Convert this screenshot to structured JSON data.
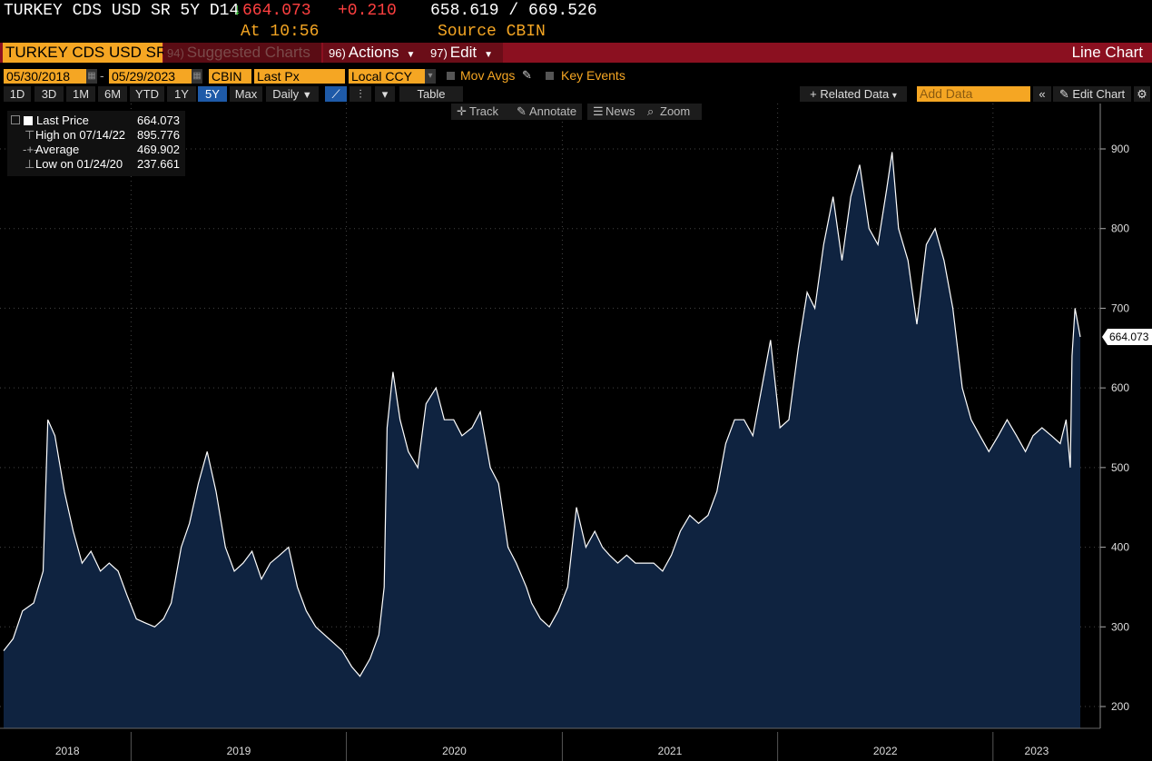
{
  "header": {
    "ticker": "TURKEY CDS USD SR 5Y D14",
    "direction_arrow": "↓",
    "last": "664.073",
    "change": "+0.210",
    "range": "658.619 / 669.526",
    "time_label": "At 10:56",
    "source_label": "Source CBIN"
  },
  "toolbar": {
    "security_name": "TURKEY CDS USD SR",
    "suggested_num": "94)",
    "suggested_label": "Suggested Charts",
    "actions_num": "96)",
    "actions_label": "Actions",
    "edit_num": "97)",
    "edit_label": "Edit",
    "chart_type": "Line Chart"
  },
  "settings": {
    "start_date": "05/30/2018",
    "end_date": "05/29/2023",
    "source": "CBIN",
    "field": "Last Px",
    "currency": "Local CCY",
    "mov_avgs": "Mov Avgs",
    "key_events": "Key Events"
  },
  "periods": [
    "1D",
    "3D",
    "1M",
    "6M",
    "YTD",
    "1Y",
    "5Y",
    "Max"
  ],
  "selected_period": "5Y",
  "frequency": "Daily",
  "table_label": "Table",
  "related_data": "Related Data",
  "add_data_placeholder": "Add Data",
  "edit_chart": "Edit Chart",
  "tools": [
    "Track",
    "Annotate",
    "News",
    "Zoom"
  ],
  "legend": {
    "last_label": "Last Price",
    "last_value": "664.073",
    "high_label": "High on 07/14/22",
    "high_value": "895.776",
    "avg_label": "Average",
    "avg_value": "469.902",
    "low_label": "Low on 01/24/20",
    "low_value": "237.661"
  },
  "chart_data": {
    "type": "area",
    "title": "",
    "xlabel": "",
    "ylabel": "",
    "ylim": [
      175,
      950
    ],
    "yticks": [
      200,
      300,
      400,
      500,
      600,
      700,
      800,
      900
    ],
    "x_tick_labels": [
      "2018",
      "2019",
      "2020",
      "2021",
      "2022",
      "2023"
    ],
    "last_value_label": "664.073",
    "fill_color": "#0f2340",
    "line_color": "#ffffff",
    "grid": true,
    "x": [
      "2018-05-30",
      "2018-06-15",
      "2018-07-01",
      "2018-07-20",
      "2018-08-05",
      "2018-08-13",
      "2018-08-25",
      "2018-09-10",
      "2018-09-25",
      "2018-10-10",
      "2018-10-25",
      "2018-11-10",
      "2018-11-25",
      "2018-12-10",
      "2018-12-25",
      "2019-01-10",
      "2019-01-25",
      "2019-02-10",
      "2019-02-25",
      "2019-03-10",
      "2019-03-27",
      "2019-04-10",
      "2019-04-25",
      "2019-05-10",
      "2019-05-25",
      "2019-06-10",
      "2019-06-25",
      "2019-07-10",
      "2019-07-25",
      "2019-08-10",
      "2019-08-25",
      "2019-09-10",
      "2019-09-25",
      "2019-10-10",
      "2019-10-25",
      "2019-11-10",
      "2019-11-25",
      "2019-12-10",
      "2019-12-25",
      "2020-01-10",
      "2020-01-24",
      "2020-02-10",
      "2020-02-25",
      "2020-03-05",
      "2020-03-10",
      "2020-03-20",
      "2020-04-01",
      "2020-04-15",
      "2020-05-01",
      "2020-05-15",
      "2020-06-01",
      "2020-06-15",
      "2020-07-01",
      "2020-07-15",
      "2020-08-01",
      "2020-08-15",
      "2020-09-01",
      "2020-09-15",
      "2020-10-01",
      "2020-10-15",
      "2020-11-01",
      "2020-11-10",
      "2020-11-25",
      "2020-12-10",
      "2020-12-25",
      "2021-01-10",
      "2021-01-25",
      "2021-02-10",
      "2021-02-25",
      "2021-03-10",
      "2021-03-22",
      "2021-04-05",
      "2021-04-20",
      "2021-05-05",
      "2021-05-20",
      "2021-06-05",
      "2021-06-20",
      "2021-07-05",
      "2021-07-20",
      "2021-08-05",
      "2021-08-20",
      "2021-09-05",
      "2021-09-20",
      "2021-10-05",
      "2021-10-20",
      "2021-11-05",
      "2021-11-20",
      "2021-12-05",
      "2021-12-20",
      "2022-01-05",
      "2022-01-20",
      "2022-02-05",
      "2022-02-20",
      "2022-03-05",
      "2022-03-20",
      "2022-04-05",
      "2022-04-20",
      "2022-05-05",
      "2022-05-20",
      "2022-06-05",
      "2022-06-20",
      "2022-07-05",
      "2022-07-14",
      "2022-07-25",
      "2022-08-10",
      "2022-08-25",
      "2022-09-10",
      "2022-09-25",
      "2022-10-10",
      "2022-10-25",
      "2022-11-10",
      "2022-11-25",
      "2022-12-10",
      "2022-12-25",
      "2023-01-10",
      "2023-01-25",
      "2023-02-10",
      "2023-02-25",
      "2023-03-10",
      "2023-03-25",
      "2023-04-10",
      "2023-04-25",
      "2023-05-05",
      "2023-05-12",
      "2023-05-15",
      "2023-05-20",
      "2023-05-29"
    ],
    "series": [
      {
        "values": [
          270,
          285,
          320,
          330,
          370,
          560,
          540,
          470,
          420,
          380,
          395,
          370,
          380,
          370,
          340,
          310,
          305,
          300,
          310,
          330,
          400,
          430,
          480,
          520,
          470,
          400,
          370,
          380,
          395,
          360,
          380,
          390,
          400,
          350,
          320,
          300,
          290,
          280,
          270,
          250,
          238,
          260,
          290,
          350,
          550,
          620,
          560,
          520,
          500,
          580,
          600,
          560,
          560,
          540,
          550,
          570,
          500,
          480,
          400,
          380,
          350,
          330,
          310,
          300,
          320,
          350,
          450,
          400,
          420,
          400,
          390,
          380,
          390,
          380,
          380,
          380,
          370,
          390,
          420,
          440,
          430,
          440,
          470,
          530,
          560,
          560,
          540,
          600,
          660,
          550,
          560,
          650,
          720,
          700,
          780,
          840,
          760,
          840,
          880,
          800,
          780,
          850,
          896,
          800,
          760,
          680,
          780,
          800,
          760,
          700,
          600,
          560,
          540,
          520,
          540,
          560,
          540,
          520,
          540,
          550,
          540,
          530,
          560,
          500,
          640,
          700,
          664
        ]
      }
    ]
  }
}
